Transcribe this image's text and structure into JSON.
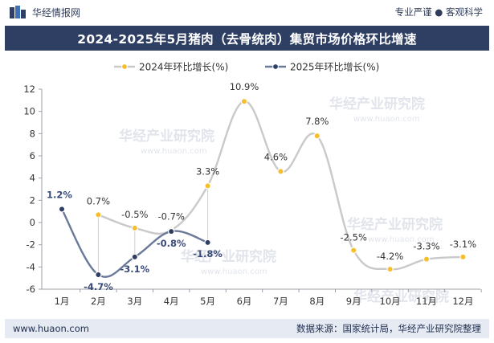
{
  "header": {
    "brand": "华经情报网",
    "tagline": "专业严谨 ● 客观科学"
  },
  "title": "2024-2025年5月猪肉（去骨统肉）集贸市场价格环比增速",
  "footer": {
    "url": "www.huaon.com",
    "source": "数据来源：国家统计局，华经产业研究院整理"
  },
  "watermark": {
    "cn": "华经产业研究院",
    "en": "www.huaon.com"
  },
  "colors": {
    "title_bg": "#2e3f63",
    "series_2024": "#c9c9c9",
    "series_2025": "#6b7a99",
    "marker": "#f6be2c",
    "footer_bg": "#e5eaf3"
  },
  "chart_data": {
    "type": "line",
    "categories": [
      "1月",
      "2月",
      "3月",
      "4月",
      "5月",
      "6月",
      "7月",
      "8月",
      "9月",
      "10月",
      "11月",
      "12月"
    ],
    "series": [
      {
        "name": "2024年环比增长(%)",
        "values": [
          null,
          0.7,
          -0.5,
          -0.7,
          3.3,
          10.9,
          4.6,
          7.8,
          -2.5,
          -4.2,
          -3.3,
          -3.1
        ],
        "labels": [
          "",
          "0.7%",
          "-0.5%",
          "-0.7%",
          "3.3%",
          "10.9%",
          "4.6%",
          "7.8%",
          "-2.5%",
          "-4.2%",
          "-3.3%",
          "-3.1%"
        ]
      },
      {
        "name": "2025年环比增长(%)",
        "values": [
          1.2,
          -4.7,
          -3.1,
          -0.8,
          -1.8,
          null,
          null,
          null,
          null,
          null,
          null,
          null
        ],
        "labels": [
          "1.2%",
          "-4.7%",
          "-3.1%",
          "-0.8%",
          "-1.8%",
          "",
          "",
          "",
          "",
          "",
          "",
          ""
        ]
      }
    ],
    "yticks": [
      "-6",
      "-4",
      "-2",
      "0",
      "2",
      "4",
      "6",
      "8",
      "10",
      "12"
    ],
    "ylim": [
      -6,
      12
    ],
    "legend": "top-center",
    "grid": false
  }
}
